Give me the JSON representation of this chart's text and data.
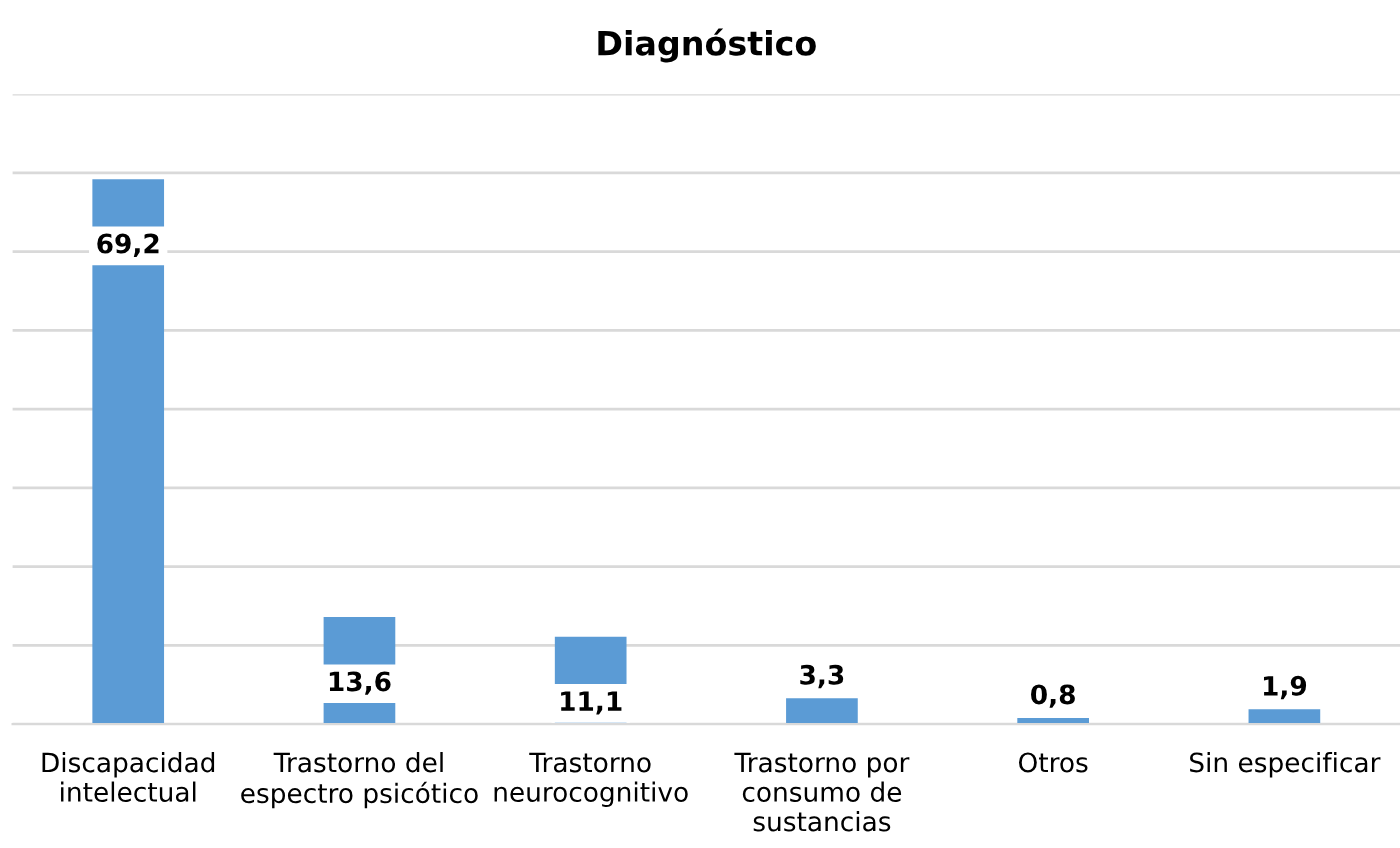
{
  "chart_data": {
    "type": "bar",
    "title": "Diagnóstico",
    "categories": [
      "Discapacidad\nintelectual",
      "Trastorno del\nespectro psicótico",
      "Trastorno\nneurocognitivo",
      "Trastorno por\nconsumo de\nsustancias",
      "Otros",
      "Sin especificar"
    ],
    "values": [
      69.2,
      13.6,
      11.1,
      3.3,
      0.8,
      1.9
    ],
    "value_labels": [
      "69,2",
      "13,6",
      "11,1",
      "3,3",
      "0,8",
      "1,9"
    ],
    "color": "#5b9bd5",
    "ylim": [
      0,
      80
    ],
    "yticks": [
      {
        "value": 0,
        "label": null
      },
      {
        "value": 10,
        "label": null
      },
      {
        "value": 20,
        "label": null
      },
      {
        "value": 30,
        "label": null
      },
      {
        "value": 40,
        "label": null
      },
      {
        "value": 50,
        "label": null
      },
      {
        "value": 60,
        "label": null
      },
      {
        "value": 70,
        "label": null
      },
      {
        "value": 80,
        "label": null
      }
    ],
    "grid": "y",
    "tick_labels": "x",
    "legend": false
  }
}
